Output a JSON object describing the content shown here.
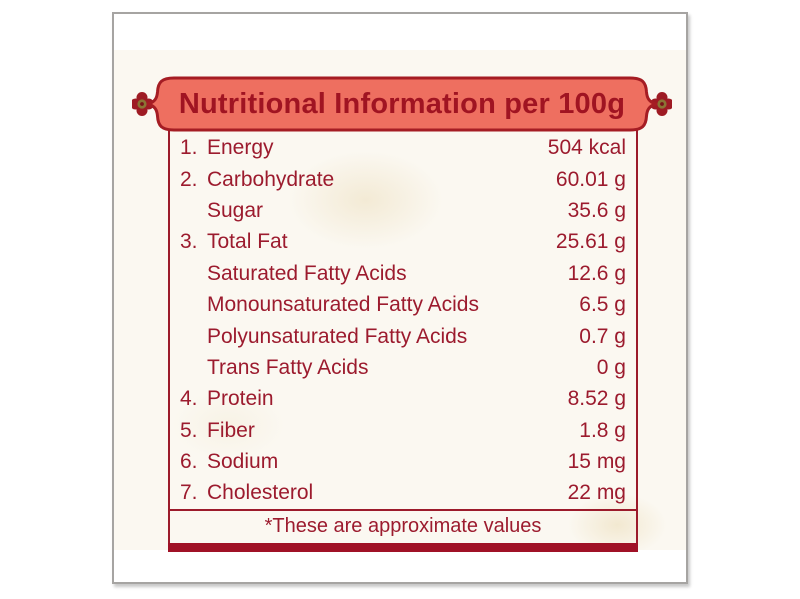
{
  "header": {
    "title": "Nutritional Information per 100g"
  },
  "table": {
    "rows": [
      {
        "num": "1.",
        "label": "Energy",
        "value": "504 kcal",
        "indent": false
      },
      {
        "num": "2.",
        "label": "Carbohydrate",
        "value": "60.01 g",
        "indent": false
      },
      {
        "num": "",
        "label": "Sugar",
        "value": "35.6 g",
        "indent": true
      },
      {
        "num": "3.",
        "label": "Total Fat",
        "value": "25.61 g",
        "indent": false
      },
      {
        "num": "",
        "label": "Saturated Fatty Acids",
        "value": "12.6 g",
        "indent": true
      },
      {
        "num": "",
        "label": "Monounsaturated Fatty Acids",
        "value": "6.5 g",
        "indent": true
      },
      {
        "num": "",
        "label": "Polyunsaturated Fatty Acids",
        "value": "0.7 g",
        "indent": true
      },
      {
        "num": "",
        "label": "Trans Fatty Acids",
        "value": "0 g",
        "indent": true
      },
      {
        "num": "4.",
        "label": "Protein",
        "value": "8.52 g",
        "indent": false
      },
      {
        "num": "5.",
        "label": "Fiber",
        "value": "1.8 g",
        "indent": false
      },
      {
        "num": "6.",
        "label": "Sodium",
        "value": "15 mg",
        "indent": false
      },
      {
        "num": "7.",
        "label": "Cholesterol",
        "value": "22 mg",
        "indent": false
      }
    ],
    "footnote": "*These are approximate values"
  },
  "colors": {
    "text_maroon": "#9c1b2e",
    "banner_fill": "#ee6f60",
    "banner_border": "#a51d24",
    "base_bar": "#a01126",
    "ornament_center_olive": "#8a7434",
    "paper": "#fbf8f1"
  }
}
